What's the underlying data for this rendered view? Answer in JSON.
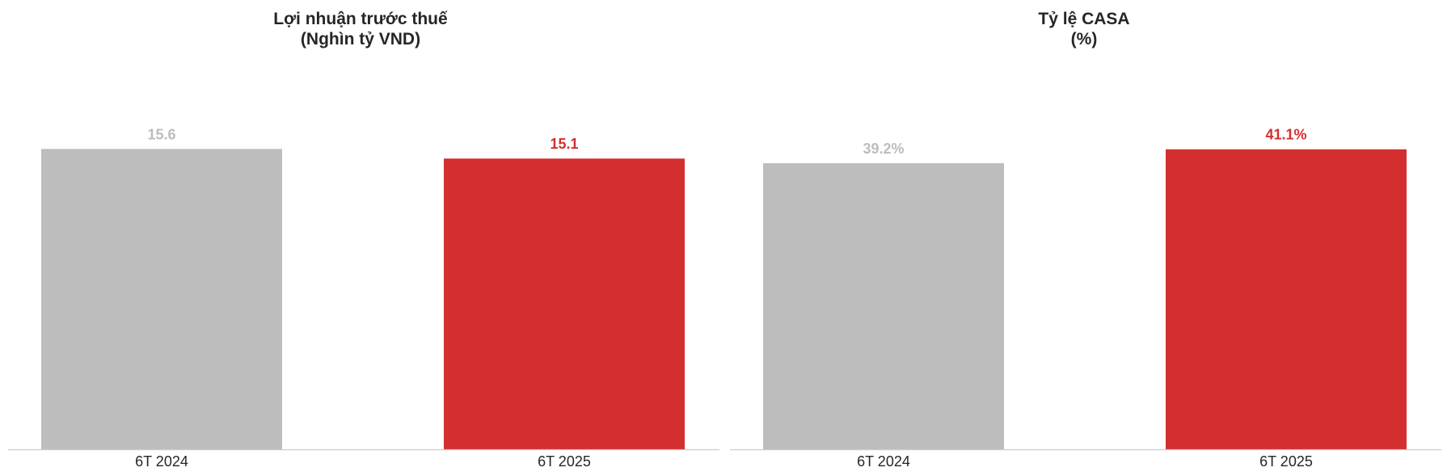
{
  "chart_data": [
    {
      "type": "bar",
      "title": "Lợi nhuận trước thuế",
      "subtitle": "(Nghìn tỷ VND)",
      "categories": [
        "6T 2024",
        "6T 2025"
      ],
      "values": [
        15.6,
        15.1
      ],
      "value_labels": [
        "15.6",
        "15.1"
      ],
      "colors": [
        "#bdbdbd",
        "#d32f2f"
      ],
      "label_colors": [
        "#bdbdbd",
        "#d32f2f"
      ],
      "xlabel": "",
      "ylabel": "",
      "ylim": [
        0,
        19.6
      ],
      "grid": false,
      "legend": "none"
    },
    {
      "type": "bar",
      "title": "Tỷ lệ CASA",
      "subtitle": "(%)",
      "categories": [
        "6T 2024",
        "6T 2025"
      ],
      "values": [
        39.2,
        41.1
      ],
      "value_labels": [
        "39.2%",
        "41.1%"
      ],
      "colors": [
        "#bdbdbd",
        "#d32f2f"
      ],
      "label_colors": [
        "#bdbdbd",
        "#d32f2f"
      ],
      "xlabel": "",
      "ylabel": "",
      "ylim": [
        0,
        51.7
      ],
      "grid": false,
      "legend": "none"
    }
  ]
}
